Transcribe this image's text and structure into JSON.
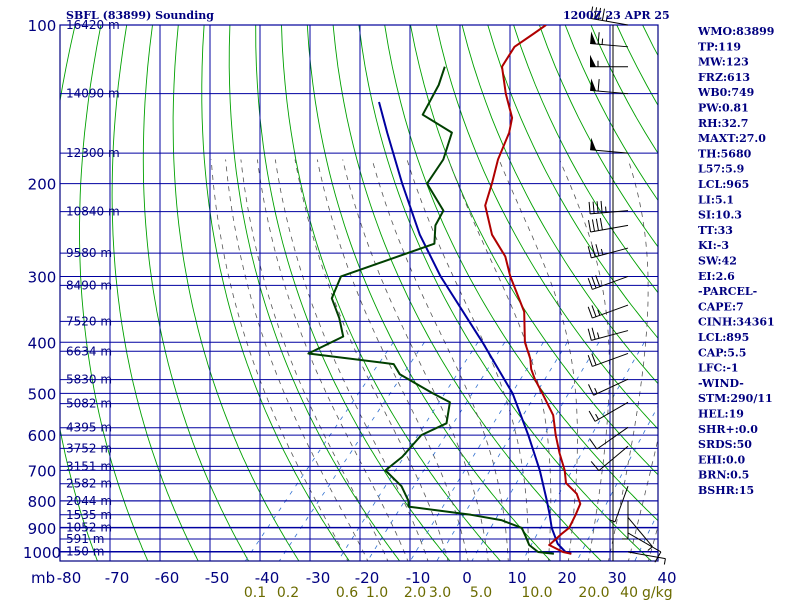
{
  "header": {
    "station": "SBFL (83899) Sounding",
    "time": "1200Z 23 APR 25"
  },
  "indices": [
    "WMO:83899",
    "TP:119",
    "MW:123",
    "FRZ:613",
    "WB0:749",
    "PW:0.81",
    "RH:32.7",
    "MAXT:27.0",
    "TH:5680",
    "L57:5.9",
    "LCL:965",
    "LI:5.1",
    "SI:10.3",
    "TT:33",
    "KI:-3",
    "SW:42",
    "EI:2.6",
    "-PARCEL-",
    "CAPE:7",
    "CINH:34361",
    "LCL:895",
    "CAP:5.5",
    "LFC:-1",
    "-WIND-",
    "STM:290/11",
    "HEL:19",
    "SHR+:0.0",
    "SRDS:50",
    "EHI:0.0",
    "BRN:0.5",
    "BSHR:15"
  ],
  "colors": {
    "axes": "#000080",
    "grid": "#0000a0",
    "dry_adiabat": "#00a000",
    "moist_adiabat": "#555555",
    "mixing_ratio": "#3070d0",
    "temperature": "#b00000",
    "dewpoint": "#004000",
    "parcel": "#0000a0",
    "mixing_label": "#6b6b00"
  },
  "chart_data": {
    "type": "skew-t log-p sounding",
    "pressure_axis_unit": "mb",
    "pressure_ticks": [
      100,
      200,
      300,
      400,
      500,
      600,
      700,
      800,
      900,
      1000
    ],
    "temperature_ticks": [
      -80,
      -70,
      -60,
      -50,
      -40,
      -30,
      -20,
      -10,
      0,
      10,
      20,
      30,
      40
    ],
    "temperature_tick_labels": [
      "-80",
      "-70",
      "-60",
      "-50",
      "-40",
      "-30",
      "-20",
      "-10",
      "0",
      "10",
      "20",
      "30",
      "40"
    ],
    "mixing_ratio_labels": [
      "0.1",
      "0.2",
      "0.6",
      "1.0",
      "2.0",
      "3.0",
      "5.0",
      "10.0",
      "20.0",
      "40"
    ],
    "mixing_ratio_unit": "g/kg",
    "height_levels": [
      {
        "p": 100,
        "label": "16420 m"
      },
      {
        "p": 135,
        "label": "14090 m"
      },
      {
        "p": 175,
        "label": "12300 m"
      },
      {
        "p": 226,
        "label": "10840 m"
      },
      {
        "p": 271,
        "label": "9580 m"
      },
      {
        "p": 312,
        "label": "8490 m"
      },
      {
        "p": 365,
        "label": "7520 m"
      },
      {
        "p": 416,
        "label": "6634 m"
      },
      {
        "p": 471,
        "label": "5830 m"
      },
      {
        "p": 523,
        "label": "5082 m"
      },
      {
        "p": 581,
        "label": "4395 m"
      },
      {
        "p": 636,
        "label": "3752 m"
      },
      {
        "p": 688,
        "label": "3151 m"
      },
      {
        "p": 742,
        "label": "2582 m"
      },
      {
        "p": 800,
        "label": "2044 m"
      },
      {
        "p": 850,
        "label": "1535 m"
      },
      {
        "p": 898,
        "label": "1052 m"
      },
      {
        "p": 945,
        "label": "591 m"
      },
      {
        "p": 998,
        "label": "150 m"
      }
    ],
    "temperature_profile": [
      {
        "p": 1008,
        "t": 23.0
      },
      {
        "p": 1000,
        "t": 21.0
      },
      {
        "p": 970,
        "t": 17.0
      },
      {
        "p": 925,
        "t": 17.5
      },
      {
        "p": 900,
        "t": 18.0
      },
      {
        "p": 850,
        "t": 17.0
      },
      {
        "p": 810,
        "t": 16.0
      },
      {
        "p": 775,
        "t": 13.5
      },
      {
        "p": 740,
        "t": 9.5
      },
      {
        "p": 700,
        "t": 7.0
      },
      {
        "p": 650,
        "t": 3.0
      },
      {
        "p": 600,
        "t": -1.0
      },
      {
        "p": 550,
        "t": -5.0
      },
      {
        "p": 500,
        "t": -11.0
      },
      {
        "p": 470,
        "t": -15.0
      },
      {
        "p": 450,
        "t": -17.5
      },
      {
        "p": 430,
        "t": -19.5
      },
      {
        "p": 400,
        "t": -23.5
      },
      {
        "p": 350,
        "t": -29.0
      },
      {
        "p": 300,
        "t": -38.0
      },
      {
        "p": 275,
        "t": -42.5
      },
      {
        "p": 250,
        "t": -49.0
      },
      {
        "p": 220,
        "t": -55.5
      },
      {
        "p": 200,
        "t": -58.0
      },
      {
        "p": 180,
        "t": -61.0
      },
      {
        "p": 160,
        "t": -63.5
      },
      {
        "p": 150,
        "t": -65.5
      },
      {
        "p": 135,
        "t": -71.0
      },
      {
        "p": 120,
        "t": -76.5
      },
      {
        "p": 110,
        "t": -77.5
      },
      {
        "p": 104,
        "t": -76.0
      },
      {
        "p": 100,
        "t": -75.0
      }
    ],
    "dewpoint_profile": [
      {
        "p": 1008,
        "t": 19.5
      },
      {
        "p": 1000,
        "t": 16.0
      },
      {
        "p": 970,
        "t": 13.0
      },
      {
        "p": 930,
        "t": 10.5
      },
      {
        "p": 900,
        "t": 8.5
      },
      {
        "p": 870,
        "t": 3.0
      },
      {
        "p": 850,
        "t": -4.0
      },
      {
        "p": 820,
        "t": -18.0
      },
      {
        "p": 800,
        "t": -19.0
      },
      {
        "p": 750,
        "t": -23.0
      },
      {
        "p": 700,
        "t": -29.0
      },
      {
        "p": 660,
        "t": -28.0
      },
      {
        "p": 600,
        "t": -28.0
      },
      {
        "p": 570,
        "t": -25.0
      },
      {
        "p": 520,
        "t": -28.0
      },
      {
        "p": 500,
        "t": -33.0
      },
      {
        "p": 460,
        "t": -43.0
      },
      {
        "p": 440,
        "t": -46.0
      },
      {
        "p": 420,
        "t": -65.0
      },
      {
        "p": 390,
        "t": -61.0
      },
      {
        "p": 360,
        "t": -65.0
      },
      {
        "p": 330,
        "t": -70.0
      },
      {
        "p": 300,
        "t": -72.0
      },
      {
        "p": 260,
        "t": -59.0
      },
      {
        "p": 240,
        "t": -62.0
      },
      {
        "p": 225,
        "t": -63.0
      },
      {
        "p": 200,
        "t": -71.0
      },
      {
        "p": 180,
        "t": -72.0
      },
      {
        "p": 160,
        "t": -75.0
      },
      {
        "p": 148,
        "t": -84.0
      },
      {
        "p": 130,
        "t": -86.0
      },
      {
        "p": 120,
        "t": -88.0
      }
    ],
    "parcel_profile": [
      {
        "p": 1008,
        "t": 23.0
      },
      {
        "p": 1000,
        "t": 21.5
      },
      {
        "p": 965,
        "t": 18.5
      },
      {
        "p": 900,
        "t": 14.5
      },
      {
        "p": 850,
        "t": 11.8
      },
      {
        "p": 800,
        "t": 8.8
      },
      {
        "p": 700,
        "t": 2.0
      },
      {
        "p": 600,
        "t": -6.5
      },
      {
        "p": 500,
        "t": -17.0
      },
      {
        "p": 400,
        "t": -32.0
      },
      {
        "p": 300,
        "t": -52.0
      },
      {
        "p": 250,
        "t": -63.5
      },
      {
        "p": 200,
        "t": -76.0
      },
      {
        "p": 160,
        "t": -88.0
      },
      {
        "p": 140,
        "t": -95.0
      }
    ],
    "wind_barbs": [
      {
        "p": 100,
        "dir": 280,
        "kt": 45
      },
      {
        "p": 110,
        "dir": 275,
        "kt": 65
      },
      {
        "p": 120,
        "dir": 270,
        "kt": 55
      },
      {
        "p": 135,
        "dir": 275,
        "kt": 60
      },
      {
        "p": 175,
        "dir": 275,
        "kt": 50
      },
      {
        "p": 225,
        "dir": 265,
        "kt": 45
      },
      {
        "p": 240,
        "dir": 260,
        "kt": 40
      },
      {
        "p": 265,
        "dir": 255,
        "kt": 35
      },
      {
        "p": 300,
        "dir": 250,
        "kt": 30
      },
      {
        "p": 340,
        "dir": 250,
        "kt": 25
      },
      {
        "p": 380,
        "dir": 255,
        "kt": 25
      },
      {
        "p": 420,
        "dir": 250,
        "kt": 20
      },
      {
        "p": 470,
        "dir": 245,
        "kt": 15
      },
      {
        "p": 520,
        "dir": 240,
        "kt": 15
      },
      {
        "p": 580,
        "dir": 235,
        "kt": 10
      },
      {
        "p": 630,
        "dir": 230,
        "kt": 10
      },
      {
        "p": 750,
        "dir": 200,
        "kt": 5
      },
      {
        "p": 800,
        "dir": 180,
        "kt": 5
      },
      {
        "p": 860,
        "dir": 140,
        "kt": 5
      },
      {
        "p": 920,
        "dir": 120,
        "kt": 10
      },
      {
        "p": 1000,
        "dir": 100,
        "kt": 5
      }
    ]
  }
}
